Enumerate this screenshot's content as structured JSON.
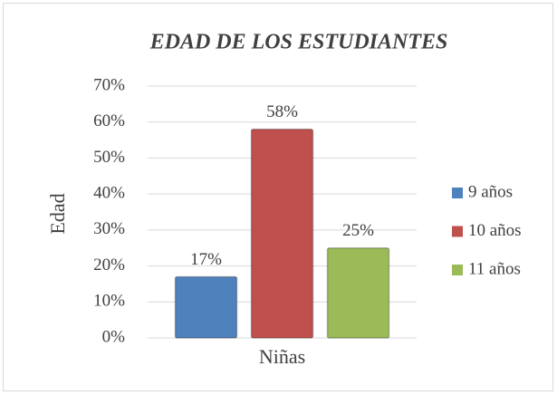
{
  "chart_data": {
    "type": "bar",
    "title": "EDAD DE LOS ESTUDIANTES",
    "y_label": "Edad",
    "categories": [
      "Niñas"
    ],
    "series": [
      {
        "name": "9 años",
        "color": "#4f81bd",
        "values": [
          17
        ],
        "value_labels": [
          "17%"
        ]
      },
      {
        "name": "10 años",
        "color": "#c0504d",
        "values": [
          58
        ],
        "value_labels": [
          "58%"
        ]
      },
      {
        "name": "11 años",
        "color": "#9bbb59",
        "values": [
          25
        ],
        "value_labels": [
          "25%"
        ]
      }
    ],
    "ylim": [
      0,
      70
    ],
    "yticks": [
      {
        "value": 0,
        "label": "0%"
      },
      {
        "value": 10,
        "label": "10%"
      },
      {
        "value": 20,
        "label": "20%"
      },
      {
        "value": 30,
        "label": "30%"
      },
      {
        "value": 40,
        "label": "40%"
      },
      {
        "value": 50,
        "label": "50%"
      },
      {
        "value": 60,
        "label": "60%"
      },
      {
        "value": 70,
        "label": "70%"
      }
    ],
    "grid": true,
    "legend": "right"
  }
}
